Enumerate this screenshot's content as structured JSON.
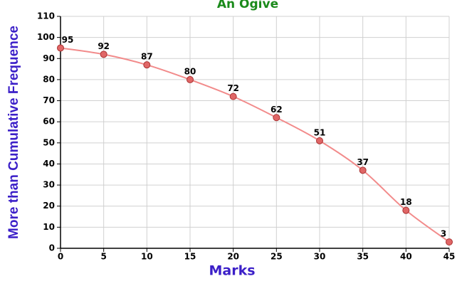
{
  "chart_data": {
    "type": "line",
    "title": "An Ogive",
    "x_label": "Marks",
    "y_label": "More than Cumulative Frequence",
    "x": [
      0,
      5,
      10,
      15,
      20,
      25,
      30,
      35,
      40,
      45
    ],
    "values": [
      95,
      92,
      87,
      80,
      72,
      62,
      51,
      37,
      18,
      3
    ],
    "color": "#f28b8b",
    "marker_color": "#e06666",
    "xlim": [
      0,
      45
    ],
    "xticks": [
      0,
      5,
      10,
      15,
      20,
      25,
      30,
      35,
      40,
      45
    ],
    "ylim": [
      0,
      110
    ],
    "yticks": [
      0,
      10,
      20,
      30,
      40,
      50,
      60,
      70,
      80,
      90,
      100,
      110
    ],
    "grid": true,
    "smooth": true
  }
}
